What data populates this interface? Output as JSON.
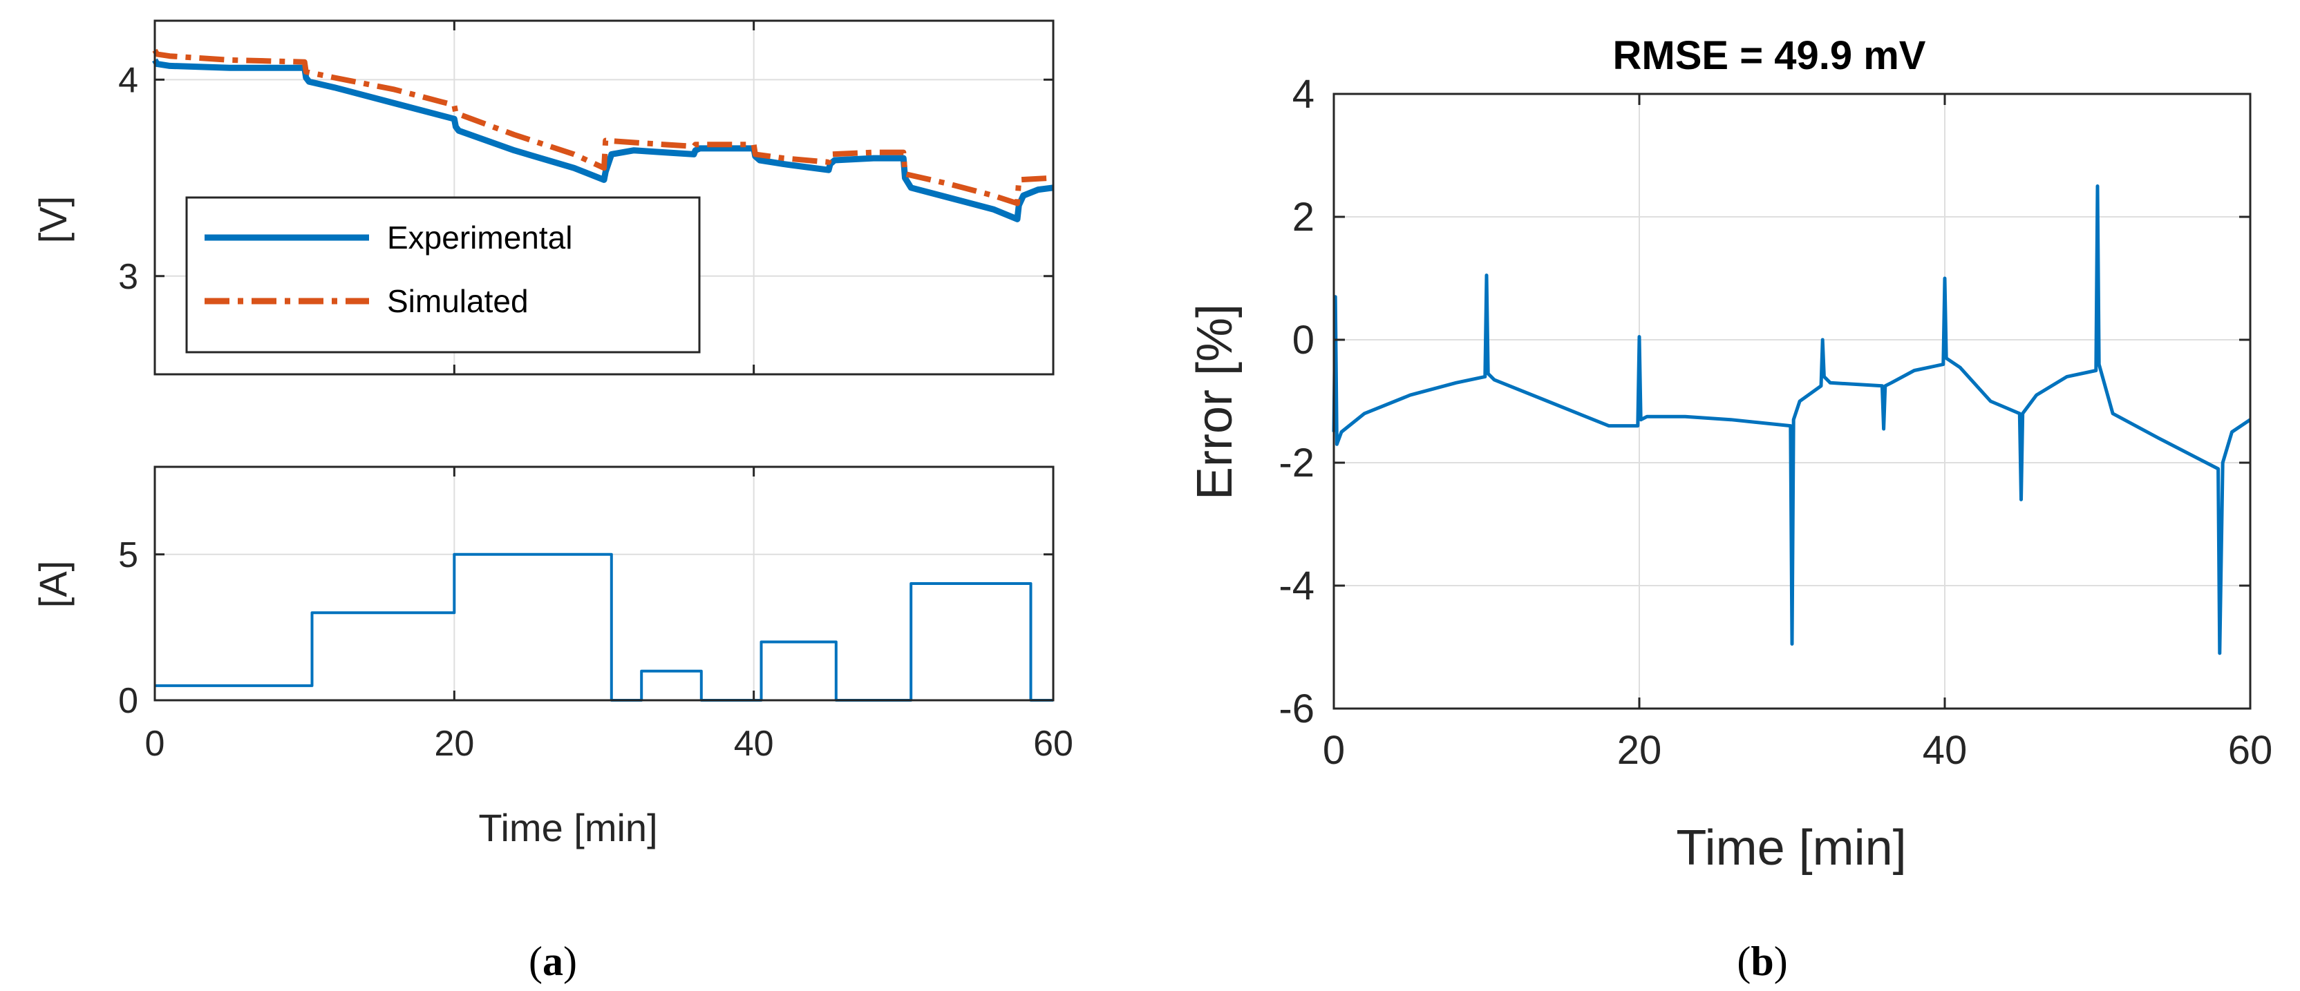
{
  "chart_data": [
    {
      "id": "a-voltage",
      "type": "line",
      "ylabel": "[V]",
      "xlim": [
        0,
        60
      ],
      "ylim": [
        2.5,
        4.3
      ],
      "yticks": [
        3,
        4
      ],
      "xticks": [
        0,
        20,
        40,
        60
      ],
      "show_xtick_labels": false,
      "grid": true,
      "legend": {
        "placement": "lower-left",
        "entries": [
          "Experimental",
          "Simulated"
        ]
      },
      "series": [
        {
          "name": "Experimental",
          "color": "#0072BD",
          "style": "solid",
          "x": [
            0,
            0.15,
            1,
            5,
            10,
            10.1,
            10.3,
            12,
            16,
            20,
            20.1,
            20.3,
            24,
            28,
            30,
            30.1,
            30.5,
            32,
            34,
            36,
            36.1,
            36.4,
            38,
            40,
            40.1,
            40.4,
            42,
            45,
            45.1,
            45.4,
            48,
            50,
            50.1,
            50.5,
            53,
            56,
            57.6,
            57.7,
            58.0,
            59,
            60
          ],
          "y": [
            4.1,
            4.08,
            4.07,
            4.06,
            4.06,
            4.01,
            3.99,
            3.96,
            3.88,
            3.8,
            3.76,
            3.74,
            3.64,
            3.55,
            3.49,
            3.53,
            3.62,
            3.64,
            3.63,
            3.62,
            3.64,
            3.65,
            3.65,
            3.65,
            3.61,
            3.59,
            3.57,
            3.54,
            3.57,
            3.59,
            3.6,
            3.6,
            3.5,
            3.45,
            3.4,
            3.34,
            3.29,
            3.36,
            3.41,
            3.44,
            3.45
          ]
        },
        {
          "name": "Simulated",
          "color": "#D95319",
          "style": "dashdot",
          "x": [
            0,
            0.15,
            1,
            5,
            10,
            10.1,
            12,
            16,
            20,
            20.1,
            24,
            28,
            30,
            30.1,
            32,
            34,
            36,
            36.1,
            38,
            40,
            40.1,
            42,
            45,
            45.1,
            48,
            50,
            50.1,
            53,
            56,
            57.6,
            57.7,
            60
          ],
          "y": [
            4.15,
            4.13,
            4.12,
            4.1,
            4.09,
            4.04,
            4.01,
            3.95,
            3.87,
            3.83,
            3.72,
            3.62,
            3.55,
            3.69,
            3.68,
            3.67,
            3.66,
            3.67,
            3.67,
            3.67,
            3.62,
            3.6,
            3.58,
            3.62,
            3.63,
            3.63,
            3.52,
            3.47,
            3.41,
            3.37,
            3.49,
            3.5
          ]
        }
      ]
    },
    {
      "id": "a-current",
      "type": "line",
      "xlabel": "Time [min]",
      "ylabel": "[A]",
      "xlim": [
        0,
        60
      ],
      "ylim": [
        0,
        8
      ],
      "yticks": [
        0,
        5
      ],
      "xticks": [
        0,
        20,
        40,
        60
      ],
      "grid": true,
      "series": [
        {
          "color": "#0072BD",
          "style": "solid",
          "x": [
            0,
            10.5,
            10.5,
            20,
            20,
            30.5,
            30.5,
            32.5,
            32.5,
            36.5,
            36.5,
            40.5,
            40.5,
            45.5,
            45.5,
            50.5,
            50.5,
            58.5,
            58.5,
            60
          ],
          "y": [
            0.5,
            0.5,
            3,
            3,
            5,
            5,
            0,
            0,
            1,
            1,
            0,
            0,
            2,
            2,
            0,
            0,
            4,
            4,
            0,
            0
          ]
        }
      ]
    },
    {
      "id": "b-error",
      "type": "line",
      "title": "RMSE = 49.9 mV",
      "xlabel": "Time [min]",
      "ylabel": "Error [%]",
      "xlim": [
        0,
        60
      ],
      "ylim": [
        -6,
        4
      ],
      "yticks": [
        -6,
        -4,
        -2,
        0,
        2,
        4
      ],
      "xticks": [
        0,
        20,
        40,
        60
      ],
      "grid": true,
      "series": [
        {
          "color": "#0072BD",
          "style": "solid",
          "x": [
            0,
            0.1,
            0.2,
            0.5,
            2,
            5,
            8,
            9.9,
            10,
            10.1,
            10.5,
            14,
            18,
            19.9,
            20,
            20.1,
            20.5,
            23,
            26,
            29.9,
            30,
            30.1,
            30.5,
            31.9,
            32,
            32.1,
            32.5,
            35.9,
            36,
            36.1,
            36.5,
            38,
            39.9,
            40,
            40.1,
            41,
            43,
            44.9,
            45,
            45.1,
            46,
            48,
            49.9,
            50,
            50.1,
            51,
            54,
            57.9,
            58,
            58.2,
            58.8,
            60
          ],
          "y": [
            -1.5,
            0.7,
            -1.7,
            -1.5,
            -1.2,
            -0.9,
            -0.7,
            -0.6,
            1.05,
            -0.55,
            -0.65,
            -1.0,
            -1.4,
            -1.4,
            0.05,
            -1.3,
            -1.25,
            -1.25,
            -1.3,
            -1.4,
            -4.95,
            -1.3,
            -1.0,
            -0.75,
            0.0,
            -0.6,
            -0.7,
            -0.75,
            -1.45,
            -0.75,
            -0.7,
            -0.5,
            -0.4,
            1.0,
            -0.3,
            -0.45,
            -1.0,
            -1.2,
            -2.6,
            -1.2,
            -0.9,
            -0.6,
            -0.5,
            2.5,
            -0.4,
            -1.2,
            -1.6,
            -2.1,
            -5.1,
            -2.0,
            -1.5,
            -1.3
          ]
        }
      ]
    }
  ],
  "labels": {
    "a_open": "(",
    "a_letter": "a",
    "a_close": ")",
    "b_open": "(",
    "b_letter": "b",
    "b_close": ")"
  }
}
